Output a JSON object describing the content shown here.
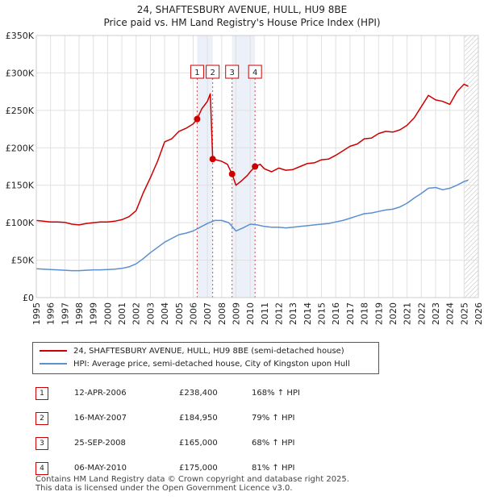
{
  "chart_data": {
    "type": "line",
    "title": "24, SHAFTESBURY AVENUE, HULL, HU9 8BE",
    "subtitle": "Price paid vs. HM Land Registry's House Price Index (HPI)",
    "x_range": [
      1995,
      2026
    ],
    "ylim": [
      0,
      350000
    ],
    "y_ticks": [
      0,
      50000,
      100000,
      150000,
      200000,
      250000,
      300000,
      350000
    ],
    "y_tick_labels": [
      "£0",
      "£50K",
      "£100K",
      "£150K",
      "£200K",
      "£250K",
      "£300K",
      "£350K"
    ],
    "x_ticks": [
      1995,
      1996,
      1997,
      1998,
      1999,
      2000,
      2001,
      2002,
      2003,
      2004,
      2005,
      2006,
      2007,
      2008,
      2009,
      2010,
      2011,
      2012,
      2013,
      2014,
      2015,
      2016,
      2017,
      2018,
      2019,
      2020,
      2021,
      2022,
      2023,
      2024,
      2025,
      2026
    ],
    "grid": true,
    "forecast_start": 2025.0,
    "series": [
      {
        "name": "24, SHAFTESBURY AVENUE, HULL, HU9 8BE (semi-detached house)",
        "color": "#cc0000",
        "x": [
          1995.0,
          1995.5,
          1996.0,
          1996.5,
          1997.0,
          1997.5,
          1998.0,
          1998.5,
          1999.0,
          1999.5,
          2000.0,
          2000.5,
          2001.0,
          2001.5,
          2002.0,
          2002.5,
          2003.0,
          2003.5,
          2004.0,
          2004.5,
          2005.0,
          2005.5,
          2006.0,
          2006.28,
          2006.6,
          2007.0,
          2007.2,
          2007.37,
          2007.6,
          2008.0,
          2008.4,
          2008.73,
          2009.0,
          2009.4,
          2009.8,
          2010.0,
          2010.34,
          2010.7,
          2011.0,
          2011.5,
          2012.0,
          2012.5,
          2013.0,
          2013.5,
          2014.0,
          2014.5,
          2015.0,
          2015.5,
          2016.0,
          2016.5,
          2017.0,
          2017.5,
          2018.0,
          2018.5,
          2019.0,
          2019.5,
          2020.0,
          2020.5,
          2021.0,
          2021.5,
          2022.0,
          2022.5,
          2023.0,
          2023.5,
          2024.0,
          2024.5,
          2025.0,
          2025.3
        ],
        "y": [
          103000,
          102000,
          101000,
          101000,
          100500,
          98000,
          97000,
          99000,
          100000,
          101000,
          101000,
          102000,
          104000,
          108000,
          116000,
          140000,
          160000,
          182000,
          208000,
          212000,
          222000,
          226000,
          232000,
          238400,
          252000,
          262000,
          272000,
          184950,
          184000,
          182000,
          178000,
          165000,
          150000,
          156000,
          163000,
          168000,
          175000,
          178000,
          172000,
          168000,
          173000,
          170000,
          171000,
          175000,
          179000,
          180000,
          184000,
          185000,
          190000,
          196000,
          202000,
          205000,
          212000,
          213000,
          219000,
          222000,
          221000,
          224000,
          230000,
          240000,
          255000,
          270000,
          264000,
          262000,
          258000,
          275000,
          285000,
          282000
        ]
      },
      {
        "name": "HPI: Average price, semi-detached house, City of Kingston upon Hull",
        "color": "#5b8fd0",
        "x": [
          1995.0,
          1995.5,
          1996.0,
          1996.5,
          1997.0,
          1997.5,
          1998.0,
          1998.5,
          1999.0,
          1999.5,
          2000.0,
          2000.5,
          2001.0,
          2001.5,
          2002.0,
          2002.5,
          2003.0,
          2003.5,
          2004.0,
          2004.5,
          2005.0,
          2005.5,
          2006.0,
          2006.5,
          2007.0,
          2007.5,
          2008.0,
          2008.5,
          2009.0,
          2009.5,
          2010.0,
          2010.5,
          2011.0,
          2011.5,
          2012.0,
          2012.5,
          2013.0,
          2013.5,
          2014.0,
          2014.5,
          2015.0,
          2015.5,
          2016.0,
          2016.5,
          2017.0,
          2017.5,
          2018.0,
          2018.5,
          2019.0,
          2019.5,
          2020.0,
          2020.5,
          2021.0,
          2021.5,
          2022.0,
          2022.5,
          2023.0,
          2023.5,
          2024.0,
          2024.5,
          2025.0,
          2025.3
        ],
        "y": [
          38500,
          38000,
          37500,
          37000,
          36500,
          36000,
          36000,
          36500,
          37000,
          37000,
          37500,
          38000,
          39000,
          41000,
          45000,
          52000,
          60000,
          67000,
          74000,
          79000,
          84000,
          86000,
          89000,
          94000,
          99000,
          103000,
          103000,
          100000,
          89000,
          93000,
          98000,
          97000,
          95000,
          94000,
          94000,
          93000,
          94000,
          95000,
          96000,
          97000,
          98000,
          99000,
          101000,
          103000,
          106000,
          109000,
          112000,
          113000,
          115000,
          117000,
          118000,
          121000,
          126000,
          133000,
          139000,
          146000,
          147000,
          144000,
          146000,
          150000,
          155000,
          157000
        ]
      }
    ],
    "sales": [
      {
        "label": "1",
        "x": 2006.28,
        "y": 238400
      },
      {
        "label": "2",
        "x": 2007.37,
        "y": 184950
      },
      {
        "label": "3",
        "x": 2008.73,
        "y": 165000
      },
      {
        "label": "4",
        "x": 2010.34,
        "y": 175000
      }
    ]
  },
  "legend": {
    "property_label": "24, SHAFTESBURY AVENUE, HULL, HU9 8BE (semi-detached house)",
    "hpi_label": "HPI: Average price, semi-detached house, City of Kingston upon Hull"
  },
  "transactions": [
    {
      "num": "1",
      "date": "12-APR-2006",
      "price": "£238,400",
      "hpi": "168% ↑ HPI"
    },
    {
      "num": "2",
      "date": "16-MAY-2007",
      "price": "£184,950",
      "hpi": "79% ↑ HPI"
    },
    {
      "num": "3",
      "date": "25-SEP-2008",
      "price": "£165,000",
      "hpi": "68% ↑ HPI"
    },
    {
      "num": "4",
      "date": "06-MAY-2010",
      "price": "£175,000",
      "hpi": "81% ↑ HPI"
    }
  ],
  "footer": {
    "line1": "Contains HM Land Registry data © Crown copyright and database right 2025.",
    "line2": "This data is licensed under the Open Government Licence v3.0."
  }
}
